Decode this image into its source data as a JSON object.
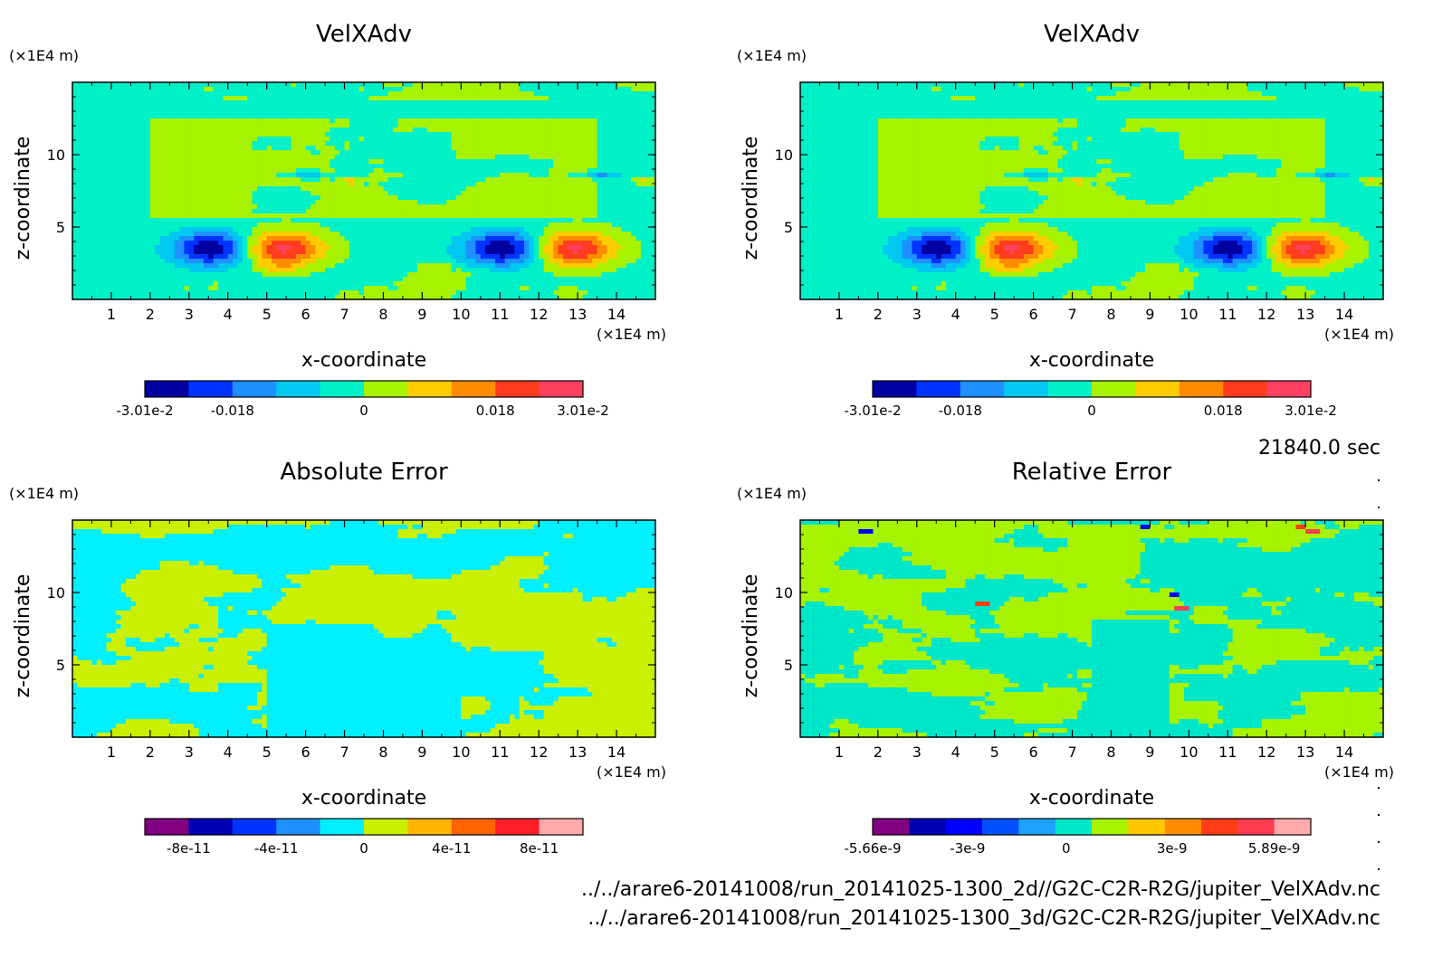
{
  "time_label": "21840.0 sec",
  "file_paths": [
    "../../arare6-20141008/run_20141025-1300_2d//G2C-C2R-R2G/jupiter_VelXAdv.nc",
    "../../arare6-20141008/run_20141025-1300_3d/G2C-C2R-R2G/jupiter_VelXAdv.nc"
  ],
  "chart_data": [
    {
      "type": "heatmap",
      "title": "VelXAdv",
      "xlabel": "x-coordinate",
      "ylabel": "z-coordinate",
      "x_unit": "(×1E4 m)",
      "y_unit": "(×1E4 m)",
      "xlim": [
        0,
        15
      ],
      "ylim": [
        0,
        15
      ],
      "x_ticks": [
        "1",
        "2",
        "3",
        "4",
        "5",
        "6",
        "7",
        "8",
        "9",
        "10",
        "11",
        "12",
        "13",
        "14"
      ],
      "y_ticks": [
        "5",
        "10"
      ],
      "field": "velx",
      "colorbar": {
        "colors": [
          "#0000a0",
          "#0033ff",
          "#1e90ff",
          "#00c8f0",
          "#00f0c8",
          "#a6f200",
          "#ffcc00",
          "#ff8c00",
          "#ff3c1e",
          "#ff4060"
        ],
        "labels": [
          "-3.01e-2",
          "-0.018",
          "0",
          "0.018",
          "3.01e-2"
        ],
        "label_positions": [
          0,
          2,
          5,
          8,
          10
        ]
      }
    },
    {
      "type": "heatmap",
      "title": "VelXAdv",
      "xlabel": "x-coordinate",
      "ylabel": "z-coordinate",
      "x_unit": "(×1E4 m)",
      "y_unit": "(×1E4 m)",
      "xlim": [
        0,
        15
      ],
      "ylim": [
        0,
        15
      ],
      "x_ticks": [
        "1",
        "2",
        "3",
        "4",
        "5",
        "6",
        "7",
        "8",
        "9",
        "10",
        "11",
        "12",
        "13",
        "14"
      ],
      "y_ticks": [
        "5",
        "10"
      ],
      "field": "velx",
      "colorbar": {
        "colors": [
          "#0000a0",
          "#0033ff",
          "#1e90ff",
          "#00c8f0",
          "#00f0c8",
          "#a6f200",
          "#ffcc00",
          "#ff8c00",
          "#ff3c1e",
          "#ff4060"
        ],
        "labels": [
          "-3.01e-2",
          "-0.018",
          "0",
          "0.018",
          "3.01e-2"
        ],
        "label_positions": [
          0,
          2,
          5,
          8,
          10
        ]
      }
    },
    {
      "type": "heatmap",
      "title": "Absolute Error",
      "xlabel": "x-coordinate",
      "ylabel": "z-coordinate",
      "x_unit": "(×1E4 m)",
      "y_unit": "(×1E4 m)",
      "xlim": [
        0,
        15
      ],
      "ylim": [
        0,
        15
      ],
      "x_ticks": [
        "1",
        "2",
        "3",
        "4",
        "5",
        "6",
        "7",
        "8",
        "9",
        "10",
        "11",
        "12",
        "13",
        "14"
      ],
      "y_ticks": [
        "5",
        "10"
      ],
      "field": "abserr",
      "colorbar": {
        "colors": [
          "#800080",
          "#0000b4",
          "#0033ff",
          "#1e90ff",
          "#00f0ff",
          "#c8f000",
          "#ffb400",
          "#ff6400",
          "#ff1e28",
          "#ffaaaa"
        ],
        "labels": [
          "-8e-11",
          "-4e-11",
          "0",
          "4e-11",
          "8e-11"
        ],
        "label_positions": [
          1,
          3,
          5,
          7,
          9
        ]
      }
    },
    {
      "type": "heatmap",
      "title": "Relative Error",
      "xlabel": "x-coordinate",
      "ylabel": "z-coordinate",
      "x_unit": "(×1E4 m)",
      "y_unit": "(×1E4 m)",
      "xlim": [
        0,
        15
      ],
      "ylim": [
        0,
        15
      ],
      "x_ticks": [
        "1",
        "2",
        "3",
        "4",
        "5",
        "6",
        "7",
        "8",
        "9",
        "10",
        "11",
        "12",
        "13",
        "14"
      ],
      "y_ticks": [
        "5",
        "10"
      ],
      "field": "relerr",
      "colorbar": {
        "colors": [
          "#800080",
          "#0000b4",
          "#0000ff",
          "#0050ff",
          "#1ea0ff",
          "#00e6c8",
          "#a6f200",
          "#ffc800",
          "#ff8c00",
          "#ff3c14",
          "#ff3c50",
          "#ffaaaa"
        ],
        "labels": [
          "-5.66e-9",
          "-3e-9",
          "0",
          "3e-9",
          "5.89e-9"
        ],
        "label_positions": [
          0,
          2.6,
          5.3,
          8.2,
          11
        ]
      }
    }
  ]
}
